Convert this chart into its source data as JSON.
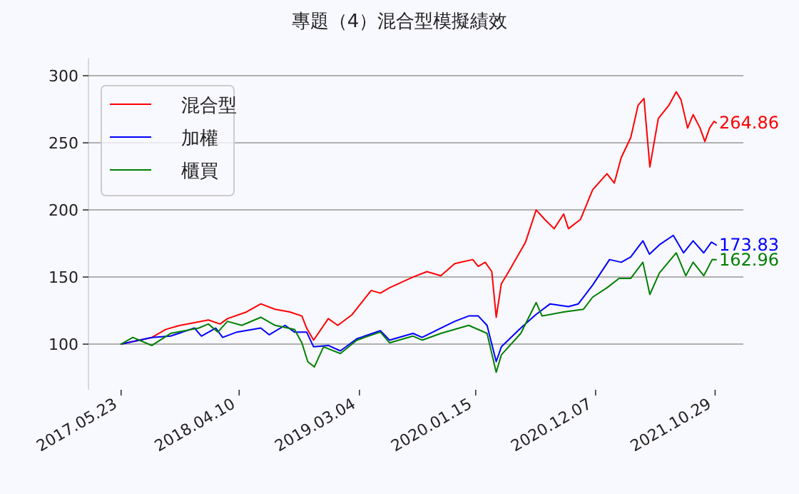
{
  "chart_data": {
    "type": "line",
    "title": "專題（4）混合型模擬績效",
    "xlim": [
      "2017-02-23",
      "2022-01-14"
    ],
    "xticks": [
      {
        "value": "2017-05-23",
        "label": "2017.05.23"
      },
      {
        "value": "2018-04-10",
        "label": "2018.04.10"
      },
      {
        "value": "2019-03-04",
        "label": "2019.03.04"
      },
      {
        "value": "2020-01-15",
        "label": "2020.01.15"
      },
      {
        "value": "2020-12-07",
        "label": "2020.12.07"
      },
      {
        "value": "2021-10-29",
        "label": "2021.10.29"
      }
    ],
    "ylim": [
      66,
      313
    ],
    "yticks": [
      100,
      150,
      200,
      250,
      300
    ],
    "grid": "y",
    "legend": "top left",
    "line_style": "solid",
    "series": [
      {
        "name": "混合型",
        "color": "#ff0000",
        "x": [
          "2017-05-23",
          "2017-08-15",
          "2017-09-22",
          "2017-10-31",
          "2018-01-16",
          "2018-02-17",
          "2018-03-09",
          "2018-04-30",
          "2018-06-08",
          "2018-07-17",
          "2018-08-26",
          "2018-09-28",
          "2018-10-11",
          "2018-10-30",
          "2018-12-09",
          "2019-01-04",
          "2019-02-12",
          "2019-04-05",
          "2019-04-30",
          "2019-05-25",
          "2019-07-28",
          "2019-09-04",
          "2019-10-12",
          "2019-11-19",
          "2020-01-07",
          "2020-01-22",
          "2020-02-10",
          "2020-02-28",
          "2020-03-11",
          "2020-03-25",
          "2020-04-14",
          "2020-05-30",
          "2020-06-28",
          "2020-07-21",
          "2020-08-16",
          "2020-09-11",
          "2020-09-24",
          "2020-10-27",
          "2020-11-29",
          "2021-01-07",
          "2021-01-27",
          "2021-02-15",
          "2021-03-13",
          "2021-04-02",
          "2021-04-18",
          "2021-05-04",
          "2021-05-27",
          "2021-06-25",
          "2021-07-15",
          "2021-07-28",
          "2021-08-15",
          "2021-08-30",
          "2021-09-18",
          "2021-10-01",
          "2021-10-14",
          "2021-10-26",
          "2021-11-01"
        ],
        "values": [
          100,
          105,
          111,
          114,
          118,
          115,
          119,
          124,
          130,
          126,
          124,
          121,
          112,
          103,
          119,
          114,
          122,
          140,
          138,
          142,
          150,
          154,
          151,
          160,
          163,
          158,
          161,
          154,
          120,
          145,
          154,
          176,
          200,
          193,
          186,
          197,
          186,
          193,
          215,
          227,
          220,
          239,
          254,
          278,
          283,
          232,
          268,
          278,
          288,
          282,
          261,
          271,
          261,
          251,
          261,
          266,
          264.86
        ]
      },
      {
        "name": "加權",
        "color": "#0000ff",
        "x": [
          "2017-05-23",
          "2017-08-15",
          "2017-10-05",
          "2017-12-09",
          "2017-12-28",
          "2018-02-05",
          "2018-02-24",
          "2018-04-04",
          "2018-06-08",
          "2018-07-01",
          "2018-08-13",
          "2018-09-08",
          "2018-10-11",
          "2018-10-30",
          "2018-12-09",
          "2019-01-11",
          "2019-02-25",
          "2019-04-30",
          "2019-05-25",
          "2019-07-28",
          "2019-08-22",
          "2019-10-12",
          "2019-11-19",
          "2019-12-27",
          "2020-01-22",
          "2020-02-15",
          "2020-03-11",
          "2020-03-25",
          "2020-05-17",
          "2020-06-27",
          "2020-08-05",
          "2020-09-24",
          "2020-10-21",
          "2020-11-29",
          "2021-01-14",
          "2021-02-15",
          "2021-03-13",
          "2021-04-15",
          "2021-05-03",
          "2021-05-30",
          "2021-07-07",
          "2021-08-04",
          "2021-08-30",
          "2021-09-28",
          "2021-10-19",
          "2021-11-01"
        ],
        "values": [
          100,
          105,
          106,
          112,
          106,
          112,
          105,
          109,
          112,
          107,
          114,
          109,
          109,
          98,
          99,
          95,
          104,
          110,
          103,
          108,
          105,
          112,
          117,
          121,
          121,
          114,
          87,
          98,
          112,
          122,
          130,
          128,
          130,
          144,
          163,
          161,
          165,
          177,
          167,
          174,
          181,
          168,
          177,
          168,
          176,
          173.83
        ]
      },
      {
        "name": "櫃買",
        "color": "#008000",
        "x": [
          "2017-05-23",
          "2017-06-24",
          "2017-08-15",
          "2017-10-05",
          "2017-12-21",
          "2018-01-16",
          "2018-02-11",
          "2018-03-09",
          "2018-04-17",
          "2018-06-08",
          "2018-07-17",
          "2018-09-08",
          "2018-09-28",
          "2018-10-14",
          "2018-11-01",
          "2018-11-26",
          "2019-01-11",
          "2019-02-25",
          "2019-04-30",
          "2019-05-25",
          "2019-07-28",
          "2019-08-22",
          "2019-10-12",
          "2019-12-27",
          "2020-02-15",
          "2020-03-11",
          "2020-03-25",
          "2020-05-17",
          "2020-06-28",
          "2020-07-14",
          "2020-09-11",
          "2020-11-04",
          "2020-11-29",
          "2021-01-07",
          "2021-02-09",
          "2021-03-13",
          "2021-04-15",
          "2021-05-04",
          "2021-05-30",
          "2021-07-15",
          "2021-08-10",
          "2021-08-30",
          "2021-09-28",
          "2021-10-21",
          "2021-11-01"
        ],
        "values": [
          100,
          105,
          99,
          108,
          112,
          115,
          109,
          117,
          114,
          120,
          114,
          111,
          101,
          87,
          83,
          98,
          93,
          103,
          109,
          101,
          106,
          103,
          108,
          114,
          108,
          79,
          92,
          108,
          131,
          121,
          124,
          126,
          135,
          142,
          149,
          149,
          161,
          137,
          153,
          168,
          151,
          161,
          151,
          163,
          162.96
        ]
      }
    ],
    "annotations": [
      {
        "text": "264.86",
        "x": "2021-11-01",
        "y": 264.86
      },
      {
        "text": "173.83",
        "x": "2021-11-01",
        "y": 173.83
      },
      {
        "text": "162.96",
        "x": "2021-11-01",
        "y": 162.96
      }
    ]
  }
}
